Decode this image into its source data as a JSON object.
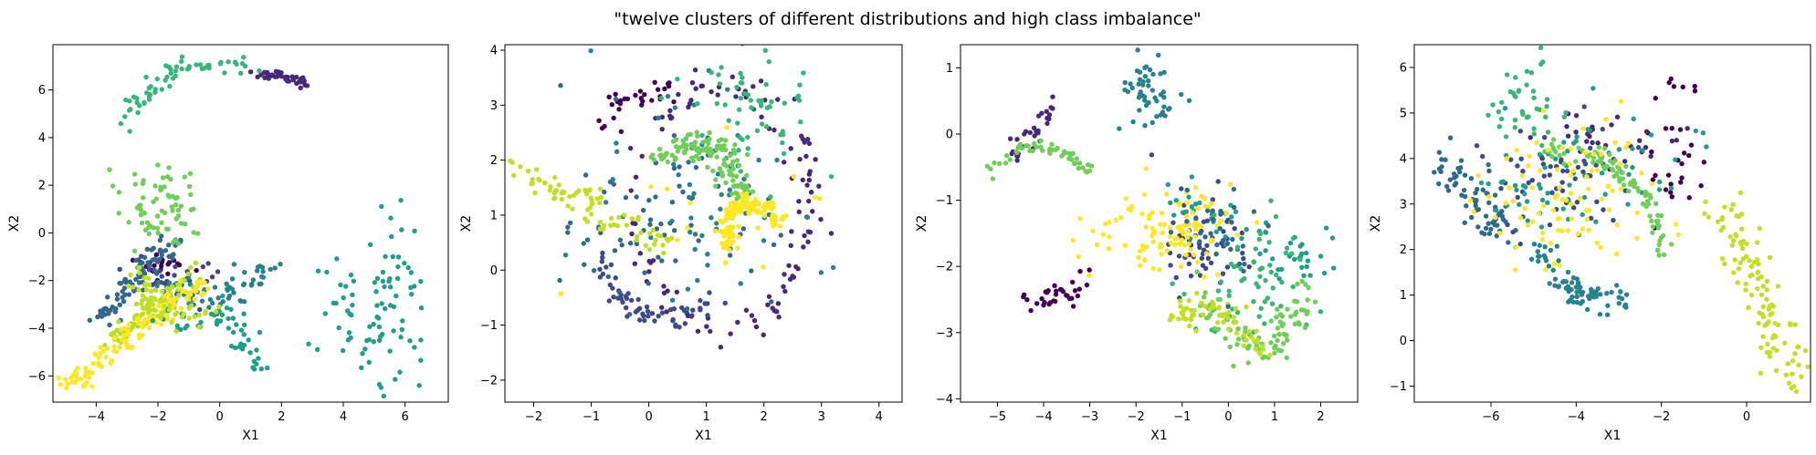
{
  "figure": {
    "title": "\"twelve clusters of different distributions and high class imbalance\""
  },
  "palette": [
    "#440154",
    "#482878",
    "#3e4989",
    "#31688e",
    "#26828e",
    "#1f9e89",
    "#35b779",
    "#6ece58",
    "#b5de2b",
    "#fde725",
    "#8fd744",
    "#c2df23"
  ],
  "chart_data": [
    {
      "type": "scatter",
      "xlabel": "X1",
      "ylabel": "X2",
      "xlim": [
        -5.4,
        7.4
      ],
      "ylim": [
        -7.1,
        7.9
      ],
      "xticks": [
        -4,
        -2,
        0,
        2,
        4,
        6
      ],
      "yticks": [
        -6,
        -4,
        -2,
        0,
        2,
        4,
        6
      ],
      "grid": false,
      "clusters": [
        {
          "class": 0,
          "kind": "blob",
          "n": 25,
          "center": [
            -1.8,
            -1.5
          ],
          "spread": [
            0.4,
            0.3
          ]
        },
        {
          "class": 1,
          "kind": "arc",
          "n": 45,
          "start": [
            1.2,
            6.7
          ],
          "end": [
            2.9,
            6.2
          ],
          "bend": 0.1,
          "noise": 0.1
        },
        {
          "class": 2,
          "kind": "blob",
          "n": 30,
          "center": [
            -1.6,
            -1.8
          ],
          "spread": [
            0.6,
            0.5
          ]
        },
        {
          "class": 3,
          "kind": "line",
          "n": 80,
          "start": [
            -4.0,
            -3.6
          ],
          "end": [
            -1.4,
            -0.2
          ],
          "noise": 0.25
        },
        {
          "class": 4,
          "kind": "arc",
          "n": 60,
          "start": [
            -2.0,
            -2.2
          ],
          "end": [
            1.5,
            -1.3
          ],
          "bend": -1.0,
          "noise": 0.3
        },
        {
          "class": 5,
          "kind": "blob",
          "n": 90,
          "center": [
            5.0,
            -3.2
          ],
          "spread": [
            0.9,
            1.8
          ]
        },
        {
          "class": 6,
          "kind": "arc",
          "n": 60,
          "start": [
            -3.2,
            4.6
          ],
          "end": [
            1.2,
            7.1
          ],
          "bend": 1.0,
          "noise": 0.2
        },
        {
          "class": 7,
          "kind": "blob",
          "n": 70,
          "center": [
            -1.8,
            1.0
          ],
          "spread": [
            0.6,
            1.0
          ]
        },
        {
          "class": 8,
          "kind": "line",
          "n": 70,
          "start": [
            -3.5,
            -4.5
          ],
          "end": [
            -0.6,
            -1.5
          ],
          "noise": 0.25
        },
        {
          "class": 9,
          "kind": "line",
          "n": 130,
          "start": [
            -4.9,
            -6.4
          ],
          "end": [
            -0.5,
            -2.0
          ],
          "noise": 0.22
        },
        {
          "class": 5,
          "kind": "arc",
          "n": 60,
          "start": [
            -1.8,
            -3.8
          ],
          "end": [
            1.0,
            -5.6
          ],
          "bend": 1.2,
          "noise": 0.3
        },
        {
          "class": 11,
          "kind": "arc",
          "n": 55,
          "start": [
            -2.6,
            -1.6
          ],
          "end": [
            0.0,
            -3.4
          ],
          "bend": -1.0,
          "noise": 0.25
        }
      ]
    },
    {
      "type": "scatter",
      "xlabel": "X1",
      "ylabel": "X2",
      "xlim": [
        -2.5,
        4.4
      ],
      "ylim": [
        -2.4,
        4.1
      ],
      "xticks": [
        -2,
        -1,
        0,
        1,
        2,
        3,
        4
      ],
      "yticks": [
        -2,
        -1,
        0,
        1,
        2,
        3,
        4
      ],
      "grid": false,
      "clusters": [
        {
          "class": 0,
          "kind": "arc",
          "n": 30,
          "start": [
            -0.7,
            2.5
          ],
          "end": [
            0.4,
            3.2
          ],
          "bend": 0.3,
          "noise": 0.12
        },
        {
          "class": 1,
          "kind": "ring",
          "n": 120,
          "center": [
            1.3,
            1.2
          ],
          "radius": [
            1.5,
            2.2
          ],
          "noise": 0.15
        },
        {
          "class": 2,
          "kind": "arc",
          "n": 60,
          "start": [
            -0.9,
            0.2
          ],
          "end": [
            1.2,
            -0.6
          ],
          "bend": -0.6,
          "noise": 0.12
        },
        {
          "class": 3,
          "kind": "blob",
          "n": 70,
          "center": [
            0.2,
            1.0
          ],
          "spread": [
            1.0,
            0.9
          ]
        },
        {
          "class": 4,
          "kind": "blob",
          "n": 60,
          "center": [
            0.9,
            1.4
          ],
          "spread": [
            0.9,
            0.9
          ]
        },
        {
          "class": 6,
          "kind": "blob",
          "n": 60,
          "center": [
            1.6,
            2.8
          ],
          "spread": [
            0.7,
            0.6
          ]
        },
        {
          "class": 7,
          "kind": "arc",
          "n": 120,
          "start": [
            0.1,
            1.9
          ],
          "end": [
            1.6,
            1.3
          ],
          "bend": 0.7,
          "noise": 0.15
        },
        {
          "class": 11,
          "kind": "line",
          "n": 80,
          "start": [
            -2.3,
            1.8
          ],
          "end": [
            0.3,
            0.5
          ],
          "noise": 0.15
        },
        {
          "class": 9,
          "kind": "arc",
          "n": 160,
          "start": [
            1.4,
            0.4
          ],
          "end": [
            2.3,
            0.9
          ],
          "bend": 0.6,
          "noise": 0.08
        },
        {
          "class": 9,
          "kind": "blob",
          "n": 15,
          "center": [
            1.2,
            1.0
          ],
          "spread": [
            1.0,
            0.8
          ]
        }
      ]
    },
    {
      "type": "scatter",
      "xlabel": "X1",
      "ylabel": "X2",
      "xlim": [
        -5.8,
        2.8
      ],
      "ylim": [
        -4.05,
        1.35
      ],
      "xticks": [
        -5,
        -4,
        -3,
        -2,
        -1,
        0,
        1,
        2
      ],
      "yticks": [
        -4,
        -3,
        -2,
        -1,
        0,
        1
      ],
      "grid": false,
      "clusters": [
        {
          "class": 0,
          "kind": "line",
          "n": 25,
          "start": [
            -4.5,
            -2.5
          ],
          "end": [
            -3.4,
            -2.4
          ],
          "noise": 0.08
        },
        {
          "class": 0,
          "kind": "blob",
          "n": 8,
          "center": [
            -3.2,
            -2.3
          ],
          "spread": [
            0.2,
            0.15
          ]
        },
        {
          "class": 1,
          "kind": "line",
          "n": 30,
          "start": [
            -4.8,
            -0.4
          ],
          "end": [
            -3.8,
            0.4
          ],
          "noise": 0.1
        },
        {
          "class": 2,
          "kind": "blob",
          "n": 60,
          "center": [
            -0.6,
            -1.6
          ],
          "spread": [
            0.5,
            0.35
          ]
        },
        {
          "class": 4,
          "kind": "blob",
          "n": 50,
          "center": [
            -1.7,
            0.6
          ],
          "spread": [
            0.35,
            0.3
          ]
        },
        {
          "class": 5,
          "kind": "line",
          "n": 60,
          "start": [
            -1.3,
            -1.1
          ],
          "end": [
            2.3,
            -2.0
          ],
          "noise": 0.2
        },
        {
          "class": 6,
          "kind": "blob",
          "n": 60,
          "center": [
            0.7,
            -2.2
          ],
          "spread": [
            0.7,
            0.5
          ]
        },
        {
          "class": 7,
          "kind": "arc",
          "n": 50,
          "start": [
            -5.2,
            -0.6
          ],
          "end": [
            -3.0,
            -0.6
          ],
          "bend": 0.4,
          "noise": 0.06
        },
        {
          "class": 7,
          "kind": "arc",
          "n": 90,
          "start": [
            -0.6,
            -2.4
          ],
          "end": [
            1.8,
            -2.2
          ],
          "bend": -0.9,
          "noise": 0.15
        },
        {
          "class": 9,
          "kind": "blob",
          "n": 110,
          "center": [
            -1.2,
            -1.5
          ],
          "spread": [
            0.8,
            0.35
          ]
        },
        {
          "class": 11,
          "kind": "arc",
          "n": 70,
          "start": [
            -1.2,
            -2.8
          ],
          "end": [
            0.8,
            -3.4
          ],
          "bend": 0.4,
          "noise": 0.12
        },
        {
          "class": 3,
          "kind": "blob",
          "n": 30,
          "center": [
            -0.1,
            -1.6
          ],
          "spread": [
            0.5,
            0.4
          ]
        }
      ]
    },
    {
      "type": "scatter",
      "xlabel": "X1",
      "ylabel": "X2",
      "xlim": [
        -7.8,
        1.5
      ],
      "ylim": [
        -1.35,
        6.5
      ],
      "xticks": [
        -6,
        -4,
        -2,
        0
      ],
      "yticks": [
        -1,
        0,
        1,
        2,
        3,
        4,
        5,
        6
      ],
      "grid": false,
      "clusters": [
        {
          "class": 0,
          "kind": "blob",
          "n": 30,
          "center": [
            -1.6,
            4.0
          ],
          "spread": [
            0.4,
            0.8
          ]
        },
        {
          "class": 1,
          "kind": "blob",
          "n": 30,
          "center": [
            -3.3,
            4.4
          ],
          "spread": [
            0.9,
            0.3
          ]
        },
        {
          "class": 2,
          "kind": "blob",
          "n": 60,
          "center": [
            -4.6,
            3.7
          ],
          "spread": [
            1.0,
            0.6
          ]
        },
        {
          "class": 3,
          "kind": "line",
          "n": 70,
          "start": [
            -7.2,
            4.1
          ],
          "end": [
            -5.5,
            2.3
          ],
          "noise": 0.25
        },
        {
          "class": 4,
          "kind": "arc",
          "n": 80,
          "start": [
            -4.8,
            2.2
          ],
          "end": [
            -2.8,
            1.0
          ],
          "bend": -0.5,
          "noise": 0.15
        },
        {
          "class": 5,
          "kind": "blob",
          "n": 70,
          "center": [
            -4.0,
            3.6
          ],
          "spread": [
            1.2,
            0.7
          ]
        },
        {
          "class": 6,
          "kind": "blob",
          "n": 40,
          "center": [
            -5.2,
            5.2
          ],
          "spread": [
            0.5,
            0.5
          ]
        },
        {
          "class": 7,
          "kind": "arc",
          "n": 90,
          "start": [
            -4.7,
            4.2
          ],
          "end": [
            -2.0,
            1.9
          ],
          "bend": 0.8,
          "noise": 0.12
        },
        {
          "class": 11,
          "kind": "line",
          "n": 110,
          "start": [
            -0.6,
            3.0
          ],
          "end": [
            1.2,
            -0.9
          ],
          "noise": 0.25
        },
        {
          "class": 9,
          "kind": "blob",
          "n": 90,
          "center": [
            -4.2,
            3.2
          ],
          "spread": [
            1.0,
            0.8
          ]
        }
      ]
    }
  ]
}
